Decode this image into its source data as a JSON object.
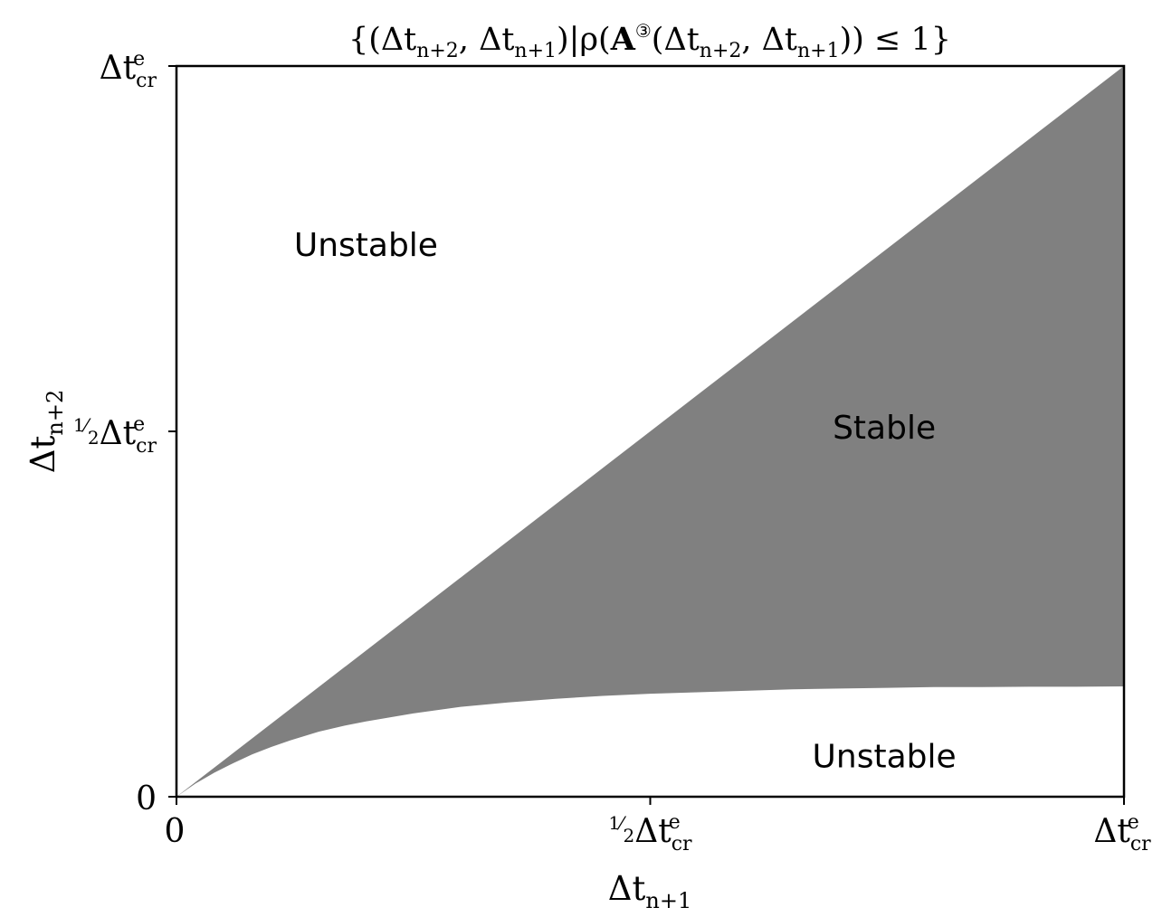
{
  "chart_data": {
    "type": "area",
    "title": "{(Δtₙ₊₂, Δtₙ₊₁)|ρ(A③(Δtₙ₊₂, Δtₙ₊₁)) ≤ 1}",
    "title_parts": {
      "open": "{(Δt",
      "sub1": "n+2",
      "comma1": ", Δt",
      "sub2": "n+1",
      "mid": ")|ρ(",
      "matrix": "A",
      "sup": "③",
      "paren": "(Δt",
      "sub3": "n+2",
      "comma2": ", Δt",
      "sub4": "n+1",
      "close": ")) ≤ 1}"
    },
    "xlabel": {
      "base": "Δt",
      "sub": "n+1"
    },
    "ylabel": {
      "base": "Δt",
      "sub": "n+2"
    },
    "xlim": [
      0,
      1
    ],
    "ylim": [
      0,
      1
    ],
    "unit_label": {
      "base": "Δt",
      "sup": "e",
      "sub": "cr"
    },
    "half_prefix": {
      "num": "1",
      "den": "2"
    },
    "ticks": [
      {
        "value": 0,
        "zero_label": "0"
      },
      {
        "value": 0.5,
        "half": true
      },
      {
        "value": 1
      }
    ],
    "fill_color": "#808080",
    "grid": false,
    "regions": [
      {
        "label": "Unstable",
        "x": 0.2,
        "y": 0.755
      },
      {
        "label": "Stable",
        "x": 0.747,
        "y": 0.505
      },
      {
        "label": "Unstable",
        "x": 0.747,
        "y": 0.055
      }
    ],
    "series": [
      {
        "role": "upper_boundary",
        "x": [
          0,
          0.25,
          0.5,
          0.75,
          1.0
        ],
        "y": [
          0,
          0.25,
          0.5,
          0.75,
          1.0
        ]
      },
      {
        "role": "lower_boundary",
        "x": [
          0,
          0.01,
          0.02,
          0.04,
          0.06,
          0.08,
          0.1,
          0.12,
          0.15,
          0.18,
          0.2,
          0.25,
          0.3,
          0.35,
          0.4,
          0.45,
          0.5,
          0.55,
          0.6,
          0.65,
          0.7,
          0.75,
          0.8,
          0.85,
          0.9,
          0.95,
          1.0
        ],
        "y": [
          0,
          0.009,
          0.018,
          0.033,
          0.046,
          0.058,
          0.068,
          0.077,
          0.089,
          0.098,
          0.103,
          0.114,
          0.123,
          0.129,
          0.134,
          0.138,
          0.141,
          0.143,
          0.145,
          0.147,
          0.148,
          0.149,
          0.15,
          0.15,
          0.1505,
          0.1505,
          0.151
        ]
      }
    ]
  }
}
